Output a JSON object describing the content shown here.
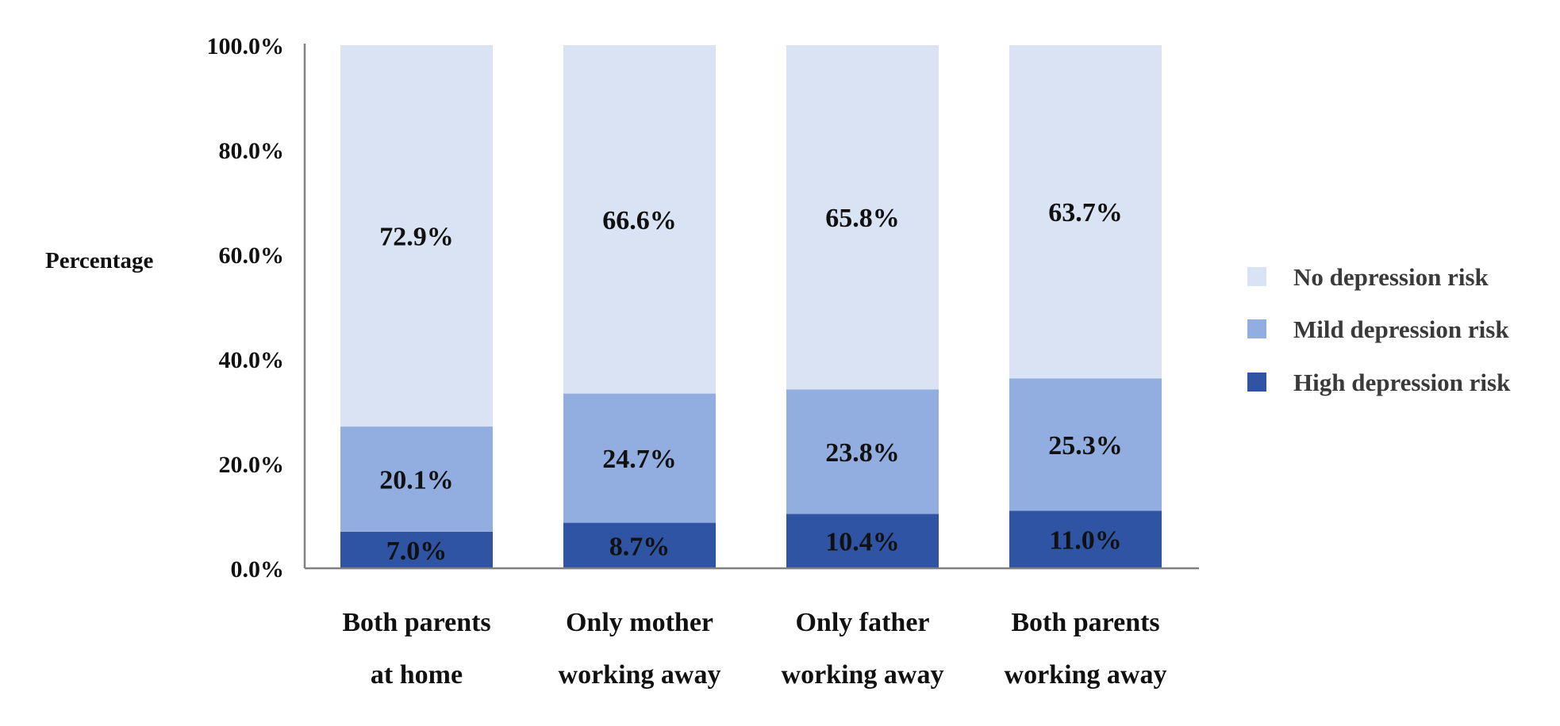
{
  "chart_data": {
    "type": "bar",
    "stacked": true,
    "title": "",
    "xlabel": "",
    "ylabel": "Percentage",
    "ylim": [
      0,
      100
    ],
    "yticks": [
      "0.0%",
      "20.0%",
      "40.0%",
      "60.0%",
      "80.0%",
      "100.0%"
    ],
    "categories": [
      [
        "Both parents",
        "at home"
      ],
      [
        "Only mother",
        "working away"
      ],
      [
        "Only father",
        "working away"
      ],
      [
        "Both parents",
        "working away"
      ]
    ],
    "series": [
      {
        "name": "High depression risk",
        "color": "#2f54a3",
        "values": [
          7.0,
          8.7,
          10.4,
          11.0
        ],
        "labels": [
          "7.0%",
          "8.7%",
          "10.4%",
          "11.0%"
        ]
      },
      {
        "name": "Mild depression risk",
        "color": "#92ade0",
        "values": [
          20.1,
          24.7,
          23.8,
          25.3
        ],
        "labels": [
          "20.1%",
          "24.7%",
          "23.8%",
          "25.3%"
        ]
      },
      {
        "name": "No depression risk",
        "color": "#dae3f3",
        "values": [
          72.9,
          66.6,
          65.8,
          63.7
        ],
        "labels": [
          "72.9%",
          "66.6%",
          "65.8%",
          "63.7%"
        ]
      }
    ],
    "legend": {
      "position": "right",
      "order": [
        "No depression risk",
        "Mild depression risk",
        "High depression risk"
      ]
    },
    "grid": false
  }
}
